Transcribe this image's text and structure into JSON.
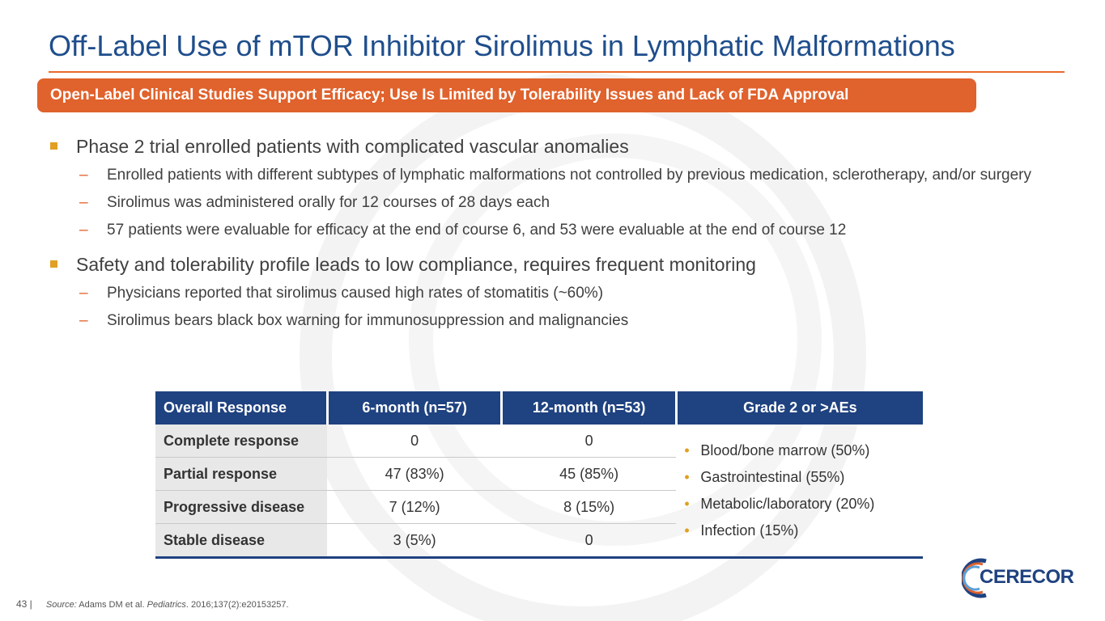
{
  "title": "Off-Label Use of mTOR Inhibitor Sirolimus in Lymphatic Malformations",
  "banner": "Open-Label Clinical Studies Support Efficacy; Use Is Limited by Tolerability Issues and Lack of FDA Approval",
  "bullets": [
    {
      "text": "Phase 2 trial enrolled patients with complicated vascular anomalies",
      "subs": [
        "Enrolled patients with different subtypes of lymphatic malformations not controlled by previous medication, sclerotherapy, and/or surgery",
        "Sirolimus was administered orally for 12 courses of 28 days each",
        "57 patients were evaluable for efficacy at the end of course 6, and 53 were evaluable at the end of course 12"
      ]
    },
    {
      "text": "Safety and tolerability profile leads to low compliance, requires frequent monitoring",
      "subs": [
        "Physicians reported that sirolimus caused high rates of stomatitis (~60%)",
        "Sirolimus bears black box warning for immunosuppression and malignancies"
      ]
    }
  ],
  "sub_dash": "–",
  "table": {
    "headers": [
      "Overall Response",
      "6-month (n=57)",
      "12-month (n=53)",
      "Grade 2 or >AEs"
    ],
    "rows": [
      {
        "label": "Complete response",
        "m6": "0",
        "m12": "0"
      },
      {
        "label": "Partial response",
        "m6": "47 (83%)",
        "m12": "45 (85%)"
      },
      {
        "label": "Progressive disease",
        "m6": "7 (12%)",
        "m12": "8 (15%)"
      },
      {
        "label": "Stable disease",
        "m6": "3 (5%)",
        "m12": "0"
      }
    ],
    "aes": [
      "Blood/bone marrow (50%)",
      "Gastrointestinal (55%)",
      "Metabolic/laboratory (20%)",
      "Infection (15%)"
    ]
  },
  "footer": {
    "page": "43 |",
    "source_label": "Source:",
    "source_authors": "Adams DM et al.",
    "source_journal": "Pediatrics",
    "source_rest": ". 2016;137(2):e20153257."
  },
  "logo": {
    "text": "CERECOR"
  },
  "colors": {
    "title": "#1f4e8c",
    "accent": "#e0622c",
    "table_header": "#1f4280",
    "bullet": "#e0a023"
  }
}
